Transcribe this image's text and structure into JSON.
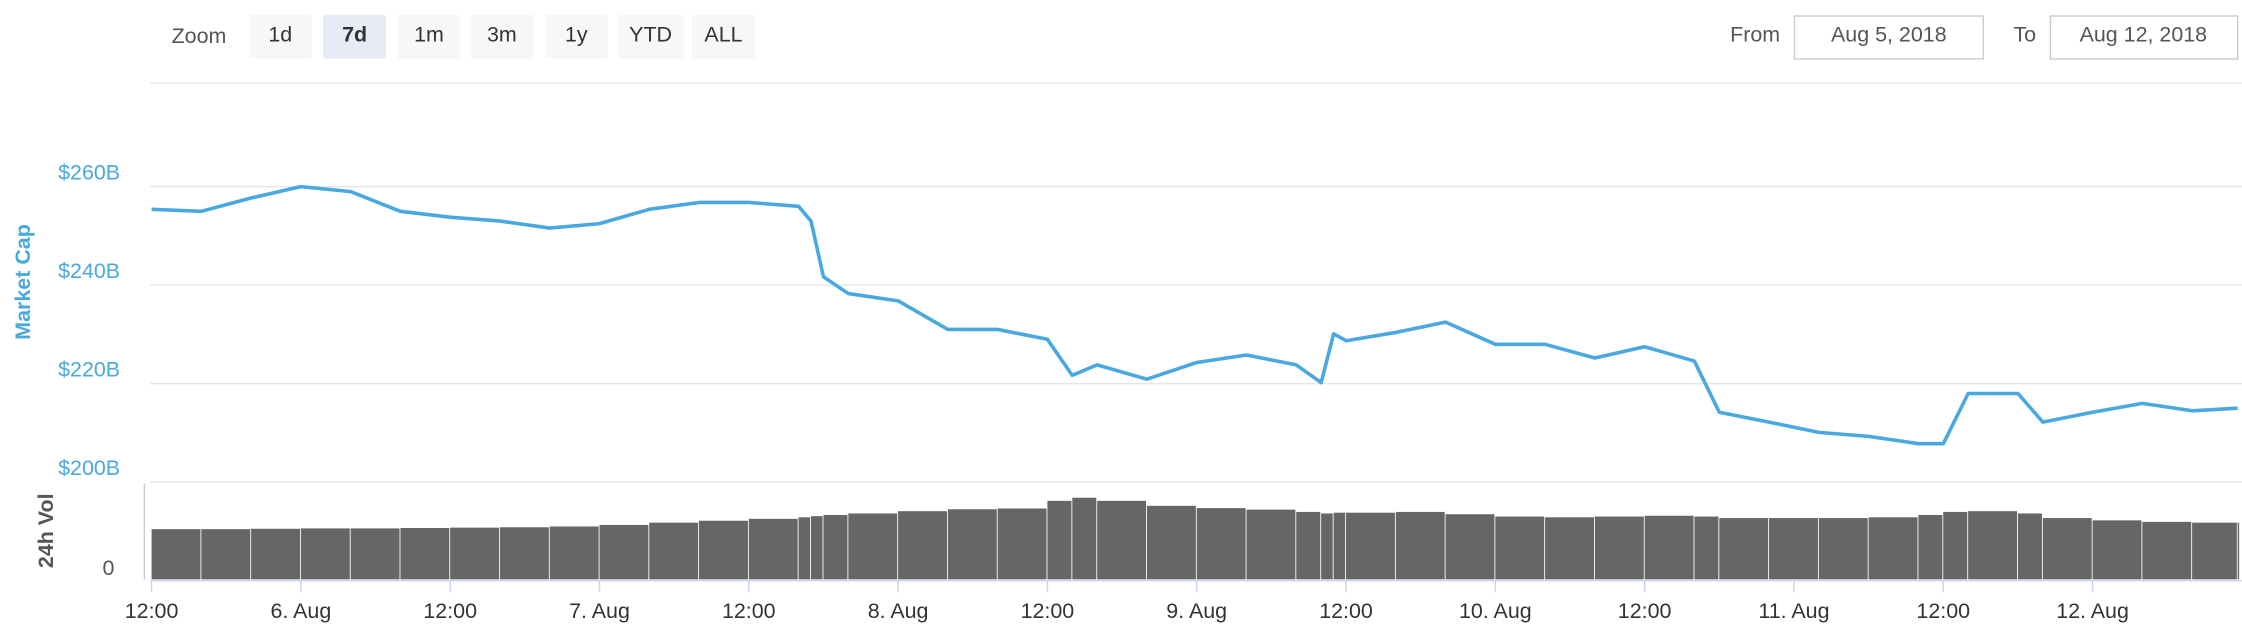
{
  "controls": {
    "zoom_label": "Zoom",
    "buttons": [
      "1d",
      "7d",
      "1m",
      "3m",
      "1y",
      "YTD",
      "ALL"
    ],
    "selected": "7d",
    "from_label": "From",
    "from": "Aug 5, 2018",
    "to_label": "To",
    "to": "Aug 12, 2018"
  },
  "chart_data": {
    "type": "line",
    "x": [
      "2018-08-05T12:00",
      "2018-08-05T16:00",
      "2018-08-05T20:00",
      "2018-08-06T00:00",
      "2018-08-06T04:00",
      "2018-08-06T08:00",
      "2018-08-06T12:00",
      "2018-08-06T16:00",
      "2018-08-06T20:00",
      "2018-08-07T00:00",
      "2018-08-07T04:00",
      "2018-08-07T08:00",
      "2018-08-07T12:00",
      "2018-08-07T16:00",
      "2018-08-07T17:00",
      "2018-08-07T18:00",
      "2018-08-07T20:00",
      "2018-08-08T00:00",
      "2018-08-08T04:00",
      "2018-08-08T08:00",
      "2018-08-08T12:00",
      "2018-08-08T14:00",
      "2018-08-08T16:00",
      "2018-08-08T20:00",
      "2018-08-09T00:00",
      "2018-08-09T04:00",
      "2018-08-09T08:00",
      "2018-08-09T10:00",
      "2018-08-09T11:00",
      "2018-08-09T12:00",
      "2018-08-09T16:00",
      "2018-08-09T20:00",
      "2018-08-10T00:00",
      "2018-08-10T04:00",
      "2018-08-10T08:00",
      "2018-08-10T12:00",
      "2018-08-10T16:00",
      "2018-08-10T18:00",
      "2018-08-10T22:00",
      "2018-08-11T02:00",
      "2018-08-11T06:00",
      "2018-08-11T10:00",
      "2018-08-11T12:00",
      "2018-08-11T14:00",
      "2018-08-11T18:00",
      "2018-08-11T20:00",
      "2018-08-12T00:00",
      "2018-08-12T04:00",
      "2018-08-12T08:00",
      "2018-08-12T11:40"
    ],
    "series": [
      {
        "name": "Market Cap",
        "color": "#4aa8e0",
        "values": [
          255.4,
          255,
          257.7,
          260,
          259,
          255,
          253.8,
          253,
          251.6,
          252.5,
          255.4,
          256.8,
          256.8,
          256,
          253,
          241.7,
          238.3,
          236.8,
          231,
          231,
          229,
          221.7,
          223.8,
          220.9,
          224.3,
          225.8,
          223.8,
          220.2,
          230.1,
          228.7,
          230.4,
          232.5,
          228,
          228,
          225.2,
          227.5,
          224.6,
          214.2,
          212.2,
          210.1,
          209.3,
          207.8,
          207.8,
          218,
          218,
          212.2,
          214.2,
          216,
          214.5,
          215
        ]
      },
      {
        "name": "24h Vol",
        "color": "#666666",
        "axis": "y2",
        "values": [
          13.1,
          13.1,
          13.2,
          13.3,
          13.3,
          13.4,
          13.5,
          13.6,
          13.8,
          14.2,
          14.8,
          15.3,
          15.8,
          16.2,
          16.5,
          16.8,
          17.2,
          17.8,
          18.3,
          18.5,
          20.5,
          21.3,
          20.5,
          19.2,
          18.6,
          18.2,
          17.6,
          17.2,
          17.4,
          17.4,
          17.6,
          17.0,
          16.4,
          16.2,
          16.4,
          16.6,
          16.4,
          16.0,
          16.0,
          16.0,
          16.2,
          16.8,
          17.6,
          17.8,
          17.2,
          16.0,
          15.4,
          15.0,
          14.8,
          14.8
        ]
      }
    ],
    "xlim": [
      "2018-08-05T12:00",
      "2018-08-12T11:40"
    ],
    "xticks": [
      {
        "value": "2018-08-05T12:00",
        "label": "12:00"
      },
      {
        "value": "2018-08-06T00:00",
        "label": "6. Aug"
      },
      {
        "value": "2018-08-06T12:00",
        "label": "12:00"
      },
      {
        "value": "2018-08-07T00:00",
        "label": "7. Aug"
      },
      {
        "value": "2018-08-07T12:00",
        "label": "12:00"
      },
      {
        "value": "2018-08-08T00:00",
        "label": "8. Aug"
      },
      {
        "value": "2018-08-08T12:00",
        "label": "12:00"
      },
      {
        "value": "2018-08-09T00:00",
        "label": "9. Aug"
      },
      {
        "value": "2018-08-09T12:00",
        "label": "12:00"
      },
      {
        "value": "2018-08-10T00:00",
        "label": "10. Aug"
      },
      {
        "value": "2018-08-10T12:00",
        "label": "12:00"
      },
      {
        "value": "2018-08-11T00:00",
        "label": "11. Aug"
      },
      {
        "value": "2018-08-11T12:00",
        "label": "12:00"
      },
      {
        "value": "2018-08-12T00:00",
        "label": "12. Aug"
      }
    ],
    "ylim": [
      200,
      281
    ],
    "yticks": [
      {
        "value": 200,
        "label": "$200B"
      },
      {
        "value": 220,
        "label": "$220B"
      },
      {
        "value": 240,
        "label": "$240B"
      },
      {
        "value": 260,
        "label": "$260B"
      }
    ],
    "y2lim": [
      0,
      25
    ],
    "y2ticks": [
      0
    ],
    "grid": true
  }
}
